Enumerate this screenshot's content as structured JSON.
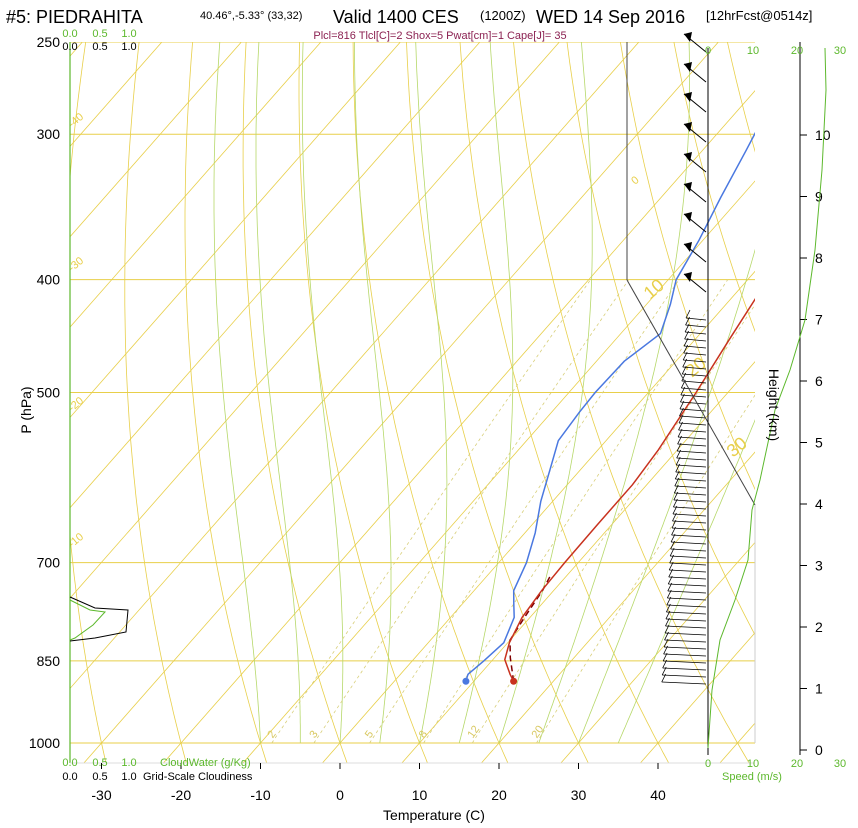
{
  "header": {
    "station": "#5: PIEDRAHITA",
    "coords": "40.46°,-5.33° (33,32)",
    "valid": "Valid 1400 CES",
    "utc": "(1200Z)",
    "date": "WED 14 Sep 2016",
    "fcst": "[12hrFcst@0514z]",
    "indices": "Plcl=816 Tlcl[C]=2 Shox=5 Pwat[cm]=1 Cape[J]= 35"
  },
  "chart_data": {
    "type": "line",
    "title": "#5: PIEDRAHITA",
    "xlabel": "Temperature (C)",
    "ylabel": "P (hPa)",
    "right_label": "Height (km)",
    "xlim": [
      -35,
      43
    ],
    "ylim": [
      1000,
      250
    ],
    "x_ticks": [
      -30,
      -20,
      -10,
      0,
      10,
      20,
      30,
      40
    ],
    "p_ticks": [
      250,
      300,
      400,
      500,
      700,
      850,
      1000
    ],
    "height_ticks": [
      0,
      1,
      2,
      3,
      4,
      5,
      6,
      7,
      8,
      9,
      10
    ],
    "isotherm_labels": [
      "-40",
      "-30",
      "-20",
      "-10",
      "0",
      "10",
      "20",
      "30"
    ],
    "mixing_ratio_labels": [
      "2",
      "3",
      "5",
      "8",
      "12",
      "20"
    ],
    "cloud_water": {
      "label": "CloudWater (g/Kg)",
      "ticks": [
        "0.0",
        "0.5",
        "1.0"
      ]
    },
    "cloudiness": {
      "label": "Grid-Scale Cloudiness",
      "ticks": [
        "0.0",
        "0.5",
        "1.0"
      ]
    },
    "speed": {
      "label": "Speed (m/s)",
      "ticks": [
        "0",
        "10",
        "20",
        "30"
      ]
    },
    "temperature": {
      "name": "Temperature",
      "color": "#c8321e",
      "points": [
        [
          15,
          885
        ],
        [
          13.8,
          873
        ],
        [
          11.5,
          848
        ],
        [
          10.2,
          820
        ],
        [
          9,
          780
        ],
        [
          8.5,
          740
        ],
        [
          8.3,
          700
        ],
        [
          8.2,
          650
        ],
        [
          8.2,
          600
        ],
        [
          7.6,
          560
        ],
        [
          6,
          500
        ],
        [
          4.3,
          450
        ],
        [
          2.5,
          400
        ],
        [
          1,
          370
        ],
        [
          -0.7,
          340
        ],
        [
          -1.5,
          320
        ],
        [
          -1.2,
          300
        ],
        [
          0.6,
          280
        ],
        [
          2,
          260
        ]
      ]
    },
    "dewpoint": {
      "name": "Dewpoint",
      "color": "#4a78e0",
      "points": [
        [
          9,
          885
        ],
        [
          8.5,
          873
        ],
        [
          9,
          850
        ],
        [
          9.5,
          820
        ],
        [
          8,
          780
        ],
        [
          6.5,
          760
        ],
        [
          5,
          740
        ],
        [
          3.5,
          700
        ],
        [
          1.3,
          660
        ],
        [
          -1.5,
          620
        ],
        [
          -4,
          580
        ],
        [
          -6,
          550
        ],
        [
          -6.5,
          520
        ],
        [
          -6.7,
          500
        ],
        [
          -6.5,
          470
        ],
        [
          -5,
          445
        ],
        [
          -7,
          420
        ],
        [
          -9,
          400
        ],
        [
          -10.5,
          370
        ],
        [
          -12.5,
          340
        ],
        [
          -14.5,
          310
        ],
        [
          -16,
          290
        ],
        [
          -17,
          265
        ],
        [
          -18,
          250
        ]
      ]
    },
    "parcel": {
      "name": "Parcel",
      "color": "#800000",
      "points": [
        [
          15,
          885
        ],
        [
          12,
          845
        ],
        [
          10,
          816
        ],
        [
          9.3,
          780
        ],
        [
          8.6,
          740
        ],
        [
          8,
          720
        ]
      ]
    },
    "surface_temperature": 15,
    "surface_dewpoint": 9,
    "surface_pressure": 885
  }
}
